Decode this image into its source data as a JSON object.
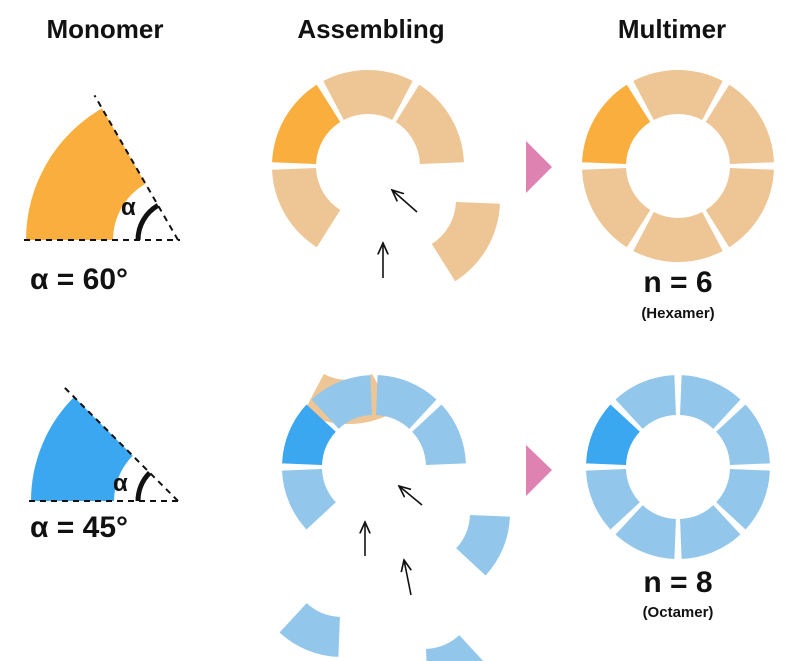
{
  "headers": {
    "monomer": "Monomer",
    "assembling": "Assembling",
    "multimer": "Multimer"
  },
  "rows": [
    {
      "id": "hexamer",
      "angle_symbol": "α",
      "angle_label": "α = 60°",
      "angle_deg": 60,
      "n_label": "n = 6",
      "name_label": "(Hexamer)",
      "subunits": 6,
      "highlight_color": "#F9AE3E",
      "segment_color": "#EEC594"
    },
    {
      "id": "octamer",
      "angle_symbol": "α",
      "angle_label": "α = 45°",
      "angle_deg": 45,
      "n_label": "n = 8",
      "name_label": "(Octamer)",
      "subunits": 8,
      "highlight_color": "#3AA7F0",
      "segment_color": "#92C7EB"
    }
  ],
  "colors": {
    "arrow": "#DE82B1",
    "text": "#111111"
  },
  "icons": {
    "transition": "right-triangle-arrow-icon",
    "assembly": "assembly-arrow-icon"
  }
}
